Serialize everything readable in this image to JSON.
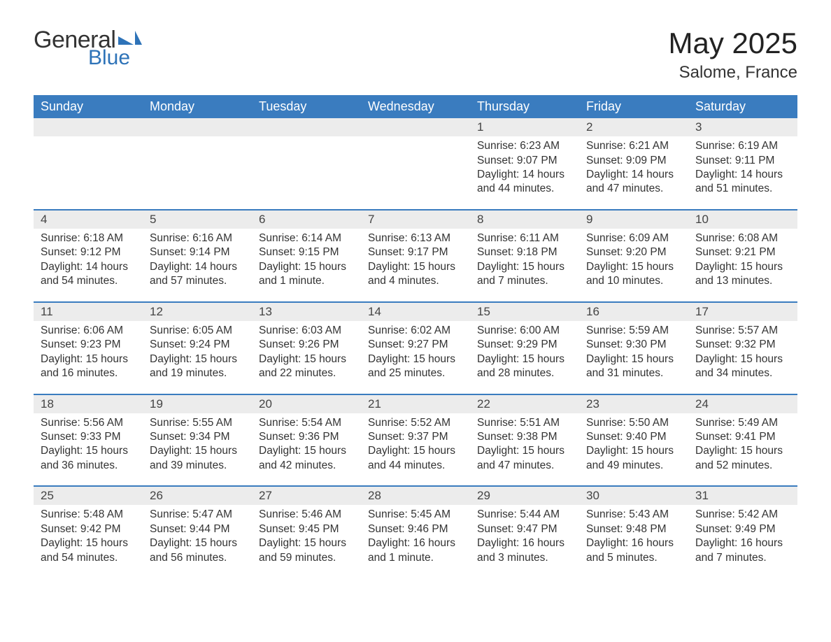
{
  "brand": {
    "text_general": "General",
    "text_blue": "Blue",
    "mark_color": "#2e73b8"
  },
  "title": "May 2025",
  "location": "Salome, France",
  "colors": {
    "header_bg": "#3a7cbf",
    "header_text": "#ffffff",
    "daynum_bg": "#ececec",
    "row_border": "#3a7cbf",
    "page_bg": "#ffffff",
    "body_text": "#333333"
  },
  "typography": {
    "title_fontsize": 42,
    "location_fontsize": 24,
    "header_fontsize": 18,
    "daynum_fontsize": 17,
    "body_fontsize": 15.5
  },
  "weekdays": [
    "Sunday",
    "Monday",
    "Tuesday",
    "Wednesday",
    "Thursday",
    "Friday",
    "Saturday"
  ],
  "labels": {
    "sunrise": "Sunrise:",
    "sunset": "Sunset:",
    "daylight": "Daylight:"
  },
  "weeks": [
    [
      null,
      null,
      null,
      null,
      {
        "n": "1",
        "sunrise": "6:23 AM",
        "sunset": "9:07 PM",
        "daylight": "14 hours and 44 minutes."
      },
      {
        "n": "2",
        "sunrise": "6:21 AM",
        "sunset": "9:09 PM",
        "daylight": "14 hours and 47 minutes."
      },
      {
        "n": "3",
        "sunrise": "6:19 AM",
        "sunset": "9:11 PM",
        "daylight": "14 hours and 51 minutes."
      }
    ],
    [
      {
        "n": "4",
        "sunrise": "6:18 AM",
        "sunset": "9:12 PM",
        "daylight": "14 hours and 54 minutes."
      },
      {
        "n": "5",
        "sunrise": "6:16 AM",
        "sunset": "9:14 PM",
        "daylight": "14 hours and 57 minutes."
      },
      {
        "n": "6",
        "sunrise": "6:14 AM",
        "sunset": "9:15 PM",
        "daylight": "15 hours and 1 minute."
      },
      {
        "n": "7",
        "sunrise": "6:13 AM",
        "sunset": "9:17 PM",
        "daylight": "15 hours and 4 minutes."
      },
      {
        "n": "8",
        "sunrise": "6:11 AM",
        "sunset": "9:18 PM",
        "daylight": "15 hours and 7 minutes."
      },
      {
        "n": "9",
        "sunrise": "6:09 AM",
        "sunset": "9:20 PM",
        "daylight": "15 hours and 10 minutes."
      },
      {
        "n": "10",
        "sunrise": "6:08 AM",
        "sunset": "9:21 PM",
        "daylight": "15 hours and 13 minutes."
      }
    ],
    [
      {
        "n": "11",
        "sunrise": "6:06 AM",
        "sunset": "9:23 PM",
        "daylight": "15 hours and 16 minutes."
      },
      {
        "n": "12",
        "sunrise": "6:05 AM",
        "sunset": "9:24 PM",
        "daylight": "15 hours and 19 minutes."
      },
      {
        "n": "13",
        "sunrise": "6:03 AM",
        "sunset": "9:26 PM",
        "daylight": "15 hours and 22 minutes."
      },
      {
        "n": "14",
        "sunrise": "6:02 AM",
        "sunset": "9:27 PM",
        "daylight": "15 hours and 25 minutes."
      },
      {
        "n": "15",
        "sunrise": "6:00 AM",
        "sunset": "9:29 PM",
        "daylight": "15 hours and 28 minutes."
      },
      {
        "n": "16",
        "sunrise": "5:59 AM",
        "sunset": "9:30 PM",
        "daylight": "15 hours and 31 minutes."
      },
      {
        "n": "17",
        "sunrise": "5:57 AM",
        "sunset": "9:32 PM",
        "daylight": "15 hours and 34 minutes."
      }
    ],
    [
      {
        "n": "18",
        "sunrise": "5:56 AM",
        "sunset": "9:33 PM",
        "daylight": "15 hours and 36 minutes."
      },
      {
        "n": "19",
        "sunrise": "5:55 AM",
        "sunset": "9:34 PM",
        "daylight": "15 hours and 39 minutes."
      },
      {
        "n": "20",
        "sunrise": "5:54 AM",
        "sunset": "9:36 PM",
        "daylight": "15 hours and 42 minutes."
      },
      {
        "n": "21",
        "sunrise": "5:52 AM",
        "sunset": "9:37 PM",
        "daylight": "15 hours and 44 minutes."
      },
      {
        "n": "22",
        "sunrise": "5:51 AM",
        "sunset": "9:38 PM",
        "daylight": "15 hours and 47 minutes."
      },
      {
        "n": "23",
        "sunrise": "5:50 AM",
        "sunset": "9:40 PM",
        "daylight": "15 hours and 49 minutes."
      },
      {
        "n": "24",
        "sunrise": "5:49 AM",
        "sunset": "9:41 PM",
        "daylight": "15 hours and 52 minutes."
      }
    ],
    [
      {
        "n": "25",
        "sunrise": "5:48 AM",
        "sunset": "9:42 PM",
        "daylight": "15 hours and 54 minutes."
      },
      {
        "n": "26",
        "sunrise": "5:47 AM",
        "sunset": "9:44 PM",
        "daylight": "15 hours and 56 minutes."
      },
      {
        "n": "27",
        "sunrise": "5:46 AM",
        "sunset": "9:45 PM",
        "daylight": "15 hours and 59 minutes."
      },
      {
        "n": "28",
        "sunrise": "5:45 AM",
        "sunset": "9:46 PM",
        "daylight": "16 hours and 1 minute."
      },
      {
        "n": "29",
        "sunrise": "5:44 AM",
        "sunset": "9:47 PM",
        "daylight": "16 hours and 3 minutes."
      },
      {
        "n": "30",
        "sunrise": "5:43 AM",
        "sunset": "9:48 PM",
        "daylight": "16 hours and 5 minutes."
      },
      {
        "n": "31",
        "sunrise": "5:42 AM",
        "sunset": "9:49 PM",
        "daylight": "16 hours and 7 minutes."
      }
    ]
  ]
}
